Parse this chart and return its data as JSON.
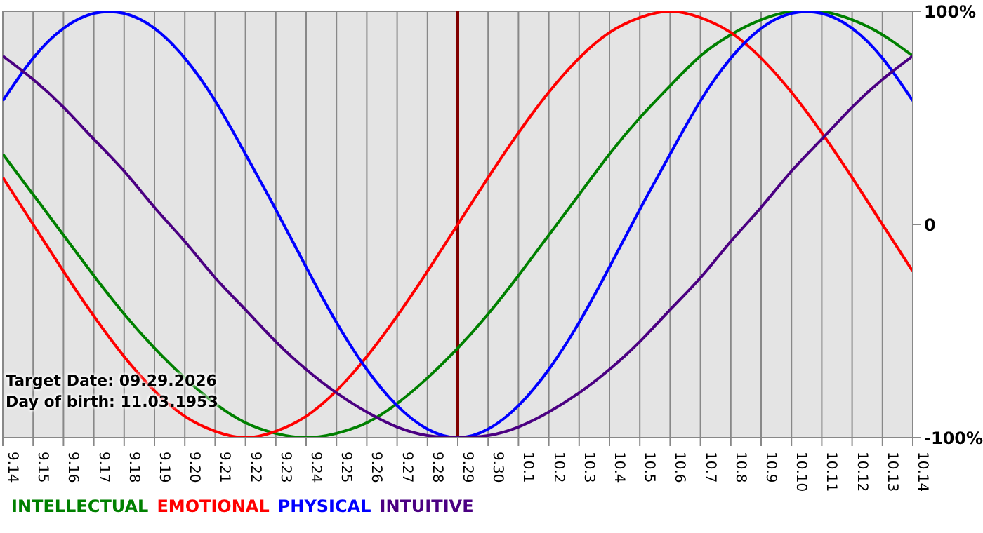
{
  "chart_data": {
    "type": "line",
    "categories": [
      "9.14",
      "9.15",
      "9.16",
      "9.17",
      "9.18",
      "9.19",
      "9.20",
      "9.21",
      "9.22",
      "9.23",
      "9.24",
      "9.25",
      "9.26",
      "9.27",
      "9.28",
      "9.29",
      "9.30",
      "10.1",
      "10.2",
      "10.3",
      "10.4",
      "10.5",
      "10.6",
      "10.7",
      "10.8",
      "10.9",
      "10.10",
      "10.11",
      "10.12",
      "10.13",
      "10.14"
    ],
    "series": [
      {
        "name": "INTELLECTUAL",
        "color": "#008000",
        "values": [
          33,
          14,
          -5,
          -24,
          -42,
          -58,
          -72,
          -84,
          -93,
          -98,
          -100,
          -98,
          -93,
          -84,
          -72,
          -58,
          -42,
          -24,
          -5,
          14,
          33,
          50,
          65,
          79,
          89,
          96,
          100,
          100,
          96,
          89,
          79
        ]
      },
      {
        "name": "EMOTIONAL",
        "color": "#ff0000",
        "values": [
          22,
          0,
          -22,
          -43,
          -62,
          -78,
          -90,
          -97,
          -100,
          -97,
          -90,
          -78,
          -62,
          -43,
          -22,
          0,
          22,
          43,
          62,
          78,
          90,
          97,
          100,
          97,
          90,
          78,
          62,
          43,
          22,
          0,
          -22
        ]
      },
      {
        "name": "PHYSICAL",
        "color": "#0000ff",
        "values": [
          58,
          78,
          92,
          99,
          99,
          92,
          78,
          58,
          33,
          7,
          -20,
          -46,
          -68,
          -85,
          -96,
          -100,
          -96,
          -85,
          -68,
          -46,
          -20,
          7,
          33,
          58,
          78,
          92,
          99,
          99,
          92,
          78,
          58
        ]
      },
      {
        "name": "INTUITIVE",
        "color": "#4b0082",
        "values": [
          79,
          68,
          55,
          40,
          25,
          8,
          -8,
          -25,
          -40,
          -55,
          -68,
          -79,
          -88,
          -95,
          -99,
          -100,
          -99,
          -95,
          -88,
          -79,
          -68,
          -55,
          -40,
          -25,
          -8,
          8,
          25,
          40,
          55,
          68,
          79
        ]
      }
    ],
    "ylim": [
      -100,
      100
    ],
    "yticks": [
      {
        "value": -100,
        "label": "-100%"
      },
      {
        "value": 0,
        "label": "0"
      },
      {
        "value": 100,
        "label": "100%"
      }
    ],
    "ref_lines": [
      {
        "axis": "x",
        "value": "9.29",
        "color": "#800000"
      }
    ],
    "annotations": [
      "Target Date: 09.29.2026",
      "Day of birth: 11.03.1953"
    ],
    "grid": true,
    "legend": "bottom left",
    "marker": "none",
    "line_style": "solid"
  }
}
